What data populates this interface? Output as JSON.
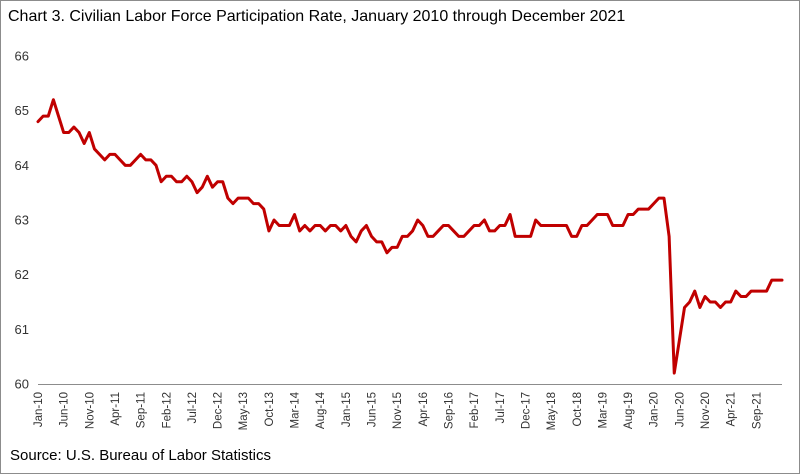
{
  "chart_data": {
    "type": "line",
    "title": "Chart 3. Civilian Labor Force Participation Rate, January 2010 through December 2021",
    "source": "Source: U.S. Bureau of Labor Statistics",
    "xlabel": "",
    "ylabel": "",
    "ylim": [
      60,
      66
    ],
    "yticks": [
      60,
      61,
      62,
      63,
      64,
      65,
      66
    ],
    "grid": false,
    "legend": "none",
    "x_start": "Jan-10",
    "x_end": "Dec-21",
    "xtick_labels": [
      "Jan-10",
      "Jun-10",
      "Nov-10",
      "Apr-11",
      "Sep-11",
      "Feb-12",
      "Jul-12",
      "Dec-12",
      "May-13",
      "Oct-13",
      "Mar-14",
      "Aug-14",
      "Jan-15",
      "Jun-15",
      "Nov-15",
      "Apr-16",
      "Sep-16",
      "Feb-17",
      "Jul-17",
      "Dec-17",
      "May-18",
      "Oct-18",
      "Mar-19",
      "Aug-19",
      "Jan-20",
      "Jun-20",
      "Nov-20",
      "Apr-21",
      "Sep-21"
    ],
    "series": [
      {
        "name": "Civilian Labor Force Participation Rate",
        "color": "#c00000",
        "values": [
          64.8,
          64.9,
          64.9,
          65.2,
          64.9,
          64.6,
          64.6,
          64.7,
          64.6,
          64.4,
          64.6,
          64.3,
          64.2,
          64.1,
          64.2,
          64.2,
          64.1,
          64.0,
          64.0,
          64.1,
          64.2,
          64.1,
          64.1,
          64.0,
          63.7,
          63.8,
          63.8,
          63.7,
          63.7,
          63.8,
          63.7,
          63.5,
          63.6,
          63.8,
          63.6,
          63.7,
          63.7,
          63.4,
          63.3,
          63.4,
          63.4,
          63.4,
          63.3,
          63.3,
          63.2,
          62.8,
          63.0,
          62.9,
          62.9,
          62.9,
          63.1,
          62.8,
          62.9,
          62.8,
          62.9,
          62.9,
          62.8,
          62.9,
          62.9,
          62.8,
          62.9,
          62.7,
          62.6,
          62.8,
          62.9,
          62.7,
          62.6,
          62.6,
          62.4,
          62.5,
          62.5,
          62.7,
          62.7,
          62.8,
          63.0,
          62.9,
          62.7,
          62.7,
          62.8,
          62.9,
          62.9,
          62.8,
          62.7,
          62.7,
          62.8,
          62.9,
          62.9,
          63.0,
          62.8,
          62.8,
          62.9,
          62.9,
          63.1,
          62.7,
          62.7,
          62.7,
          62.7,
          63.0,
          62.9,
          62.9,
          62.9,
          62.9,
          62.9,
          62.9,
          62.7,
          62.7,
          62.9,
          62.9,
          63.0,
          63.1,
          63.1,
          63.1,
          62.9,
          62.9,
          62.9,
          63.1,
          63.1,
          63.2,
          63.2,
          63.2,
          63.3,
          63.4,
          63.4,
          62.7,
          60.2,
          60.8,
          61.4,
          61.5,
          61.7,
          61.4,
          61.6,
          61.5,
          61.5,
          61.4,
          61.5,
          61.5,
          61.7,
          61.6,
          61.6,
          61.7,
          61.7,
          61.7,
          61.7,
          61.9,
          61.9,
          61.9
        ]
      }
    ]
  }
}
